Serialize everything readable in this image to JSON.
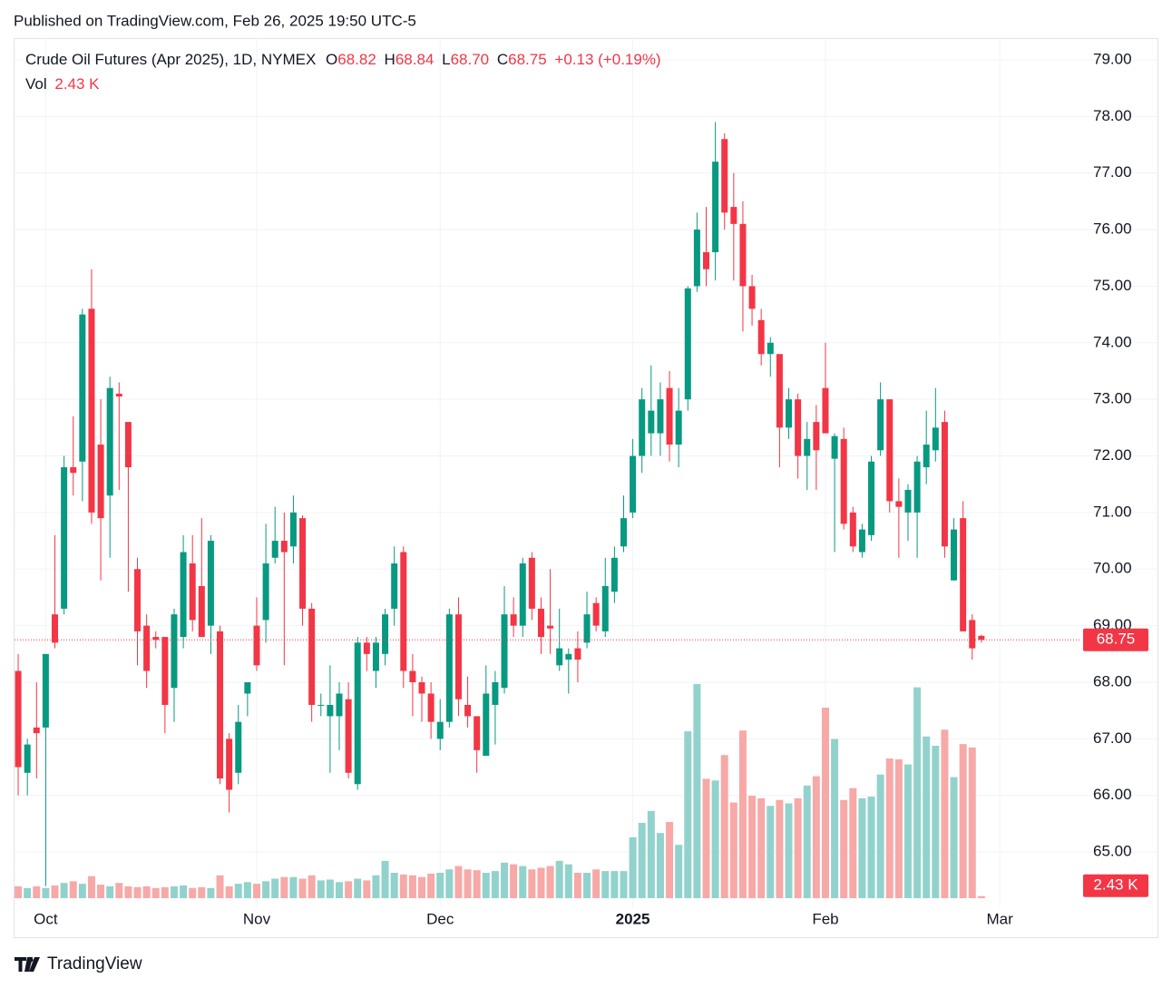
{
  "published": "Published on TradingView.com, Feb 26, 2025 19:50 UTC-5",
  "footer": "TradingView",
  "chart_data": {
    "type": "candlestick",
    "title": "Crude Oil Futures (Apr 2025), 1D, NYMEX",
    "ohlc_labels": [
      "O",
      "H",
      "L",
      "C"
    ],
    "ohlc_value_labels": [
      "68.82",
      "68.84",
      "68.70",
      "68.75"
    ],
    "change": "+0.13 (+0.19%)",
    "volume_title": "Vol",
    "volume_label": "2.43 K",
    "up_color": "#089981",
    "down_color": "#f23645",
    "volume_up_color": "#92d2cc",
    "volume_down_color": "#f7a9a7",
    "grid": true,
    "xlim": [
      -0.5,
      115
    ],
    "xticks": [
      {
        "value": 3,
        "label": "Oct"
      },
      {
        "value": 26,
        "label": "Nov"
      },
      {
        "value": 46,
        "label": "Dec"
      },
      {
        "value": 67,
        "label": "2025"
      },
      {
        "value": 88,
        "label": "Feb"
      },
      {
        "value": 107,
        "label": "Mar"
      }
    ],
    "ylim": [
      64.2,
      79.4
    ],
    "yticks": [
      {
        "value": 65,
        "label": "65.00"
      },
      {
        "value": 66,
        "label": "66.00"
      },
      {
        "value": 67,
        "label": "67.00"
      },
      {
        "value": 68,
        "label": "68.00"
      },
      {
        "value": 69,
        "label": "69.00"
      },
      {
        "value": 70,
        "label": "70.00"
      },
      {
        "value": 71,
        "label": "71.00"
      },
      {
        "value": 72,
        "label": "72.00"
      },
      {
        "value": 73,
        "label": "73.00"
      },
      {
        "value": 74,
        "label": "74.00"
      },
      {
        "value": 75,
        "label": "75.00"
      },
      {
        "value": 76,
        "label": "76.00"
      },
      {
        "value": 77,
        "label": "77.00"
      },
      {
        "value": 78,
        "label": "78.00"
      },
      {
        "value": 79,
        "label": "79.00"
      }
    ],
    "volume_lim": [
      0,
      300
    ],
    "open": [
      68.2,
      66.4,
      67.2,
      67.2,
      69.2,
      69.3,
      71.8,
      71.9,
      74.6,
      72.2,
      71.3,
      73.1,
      72.6,
      70.0,
      69.0,
      68.8,
      68.8,
      67.9,
      68.8,
      70.1,
      69.7,
      69.0,
      68.9,
      67.0,
      66.4,
      67.8,
      69.0,
      69.1,
      70.2,
      70.5,
      70.4,
      70.9,
      69.3,
      67.6,
      67.4,
      67.4,
      67.7,
      66.2,
      68.7,
      68.2,
      68.5,
      69.3,
      70.3,
      68.2,
      68.0,
      67.8,
      67.0,
      67.3,
      69.2,
      67.6,
      67.4,
      66.7,
      67.6,
      67.9,
      69.2,
      69.0,
      70.2,
      69.3,
      69.0,
      68.3,
      68.4,
      68.6,
      68.7,
      69.4,
      68.9,
      69.6,
      70.4,
      71.0,
      72.0,
      72.4,
      72.4,
      73.2,
      72.2,
      73.0,
      75.0,
      75.6,
      75.6,
      77.6,
      76.4,
      76.1,
      75.0,
      74.4,
      73.8,
      73.8,
      72.5,
      73.0,
      72.0,
      72.6,
      73.2,
      71.95,
      72.3,
      71.0,
      70.3,
      70.6,
      72.1,
      73.0,
      71.2,
      71.0,
      71.0,
      71.8,
      72.1,
      72.6,
      69.8,
      70.9,
      69.1,
      68.82
    ],
    "high": [
      68.5,
      67.0,
      68.0,
      68.5,
      70.6,
      72.0,
      72.7,
      74.6,
      75.3,
      73.0,
      73.4,
      73.3,
      72.6,
      70.2,
      69.2,
      68.9,
      68.8,
      69.3,
      70.6,
      70.6,
      70.9,
      70.6,
      69.0,
      67.1,
      67.6,
      68.0,
      69.5,
      70.8,
      71.1,
      71.0,
      71.3,
      70.95,
      69.4,
      67.8,
      68.3,
      68.0,
      68.0,
      68.8,
      68.8,
      68.8,
      69.3,
      70.4,
      70.4,
      68.5,
      68.1,
      68.0,
      67.7,
      69.3,
      69.5,
      68.1,
      67.4,
      68.3,
      68.2,
      69.7,
      69.5,
      70.2,
      70.3,
      69.5,
      70.0,
      69.3,
      68.6,
      68.9,
      69.6,
      69.5,
      70.2,
      70.4,
      71.3,
      72.3,
      73.2,
      73.6,
      73.3,
      73.5,
      73.2,
      75.0,
      76.3,
      76.4,
      77.9,
      77.7,
      77.0,
      76.5,
      75.2,
      74.6,
      74.1,
      73.8,
      73.2,
      73.1,
      72.6,
      72.9,
      74.0,
      72.4,
      72.5,
      71.1,
      70.8,
      72.0,
      73.3,
      73.0,
      71.6,
      71.5,
      72.0,
      72.8,
      73.2,
      72.8,
      70.9,
      71.2,
      69.2,
      68.84
    ],
    "low": [
      66.0,
      66.0,
      66.3,
      64.4,
      68.6,
      69.2,
      71.3,
      71.2,
      70.8,
      69.8,
      70.2,
      71.4,
      69.6,
      68.3,
      67.9,
      68.6,
      67.1,
      67.3,
      68.6,
      68.9,
      68.8,
      68.5,
      66.2,
      65.7,
      66.2,
      67.4,
      68.2,
      68.7,
      70.1,
      68.3,
      70.1,
      69.0,
      67.3,
      67.4,
      66.4,
      66.8,
      66.3,
      66.1,
      68.2,
      67.9,
      68.3,
      69.0,
      67.9,
      67.4,
      67.3,
      67.0,
      66.8,
      67.2,
      67.4,
      67.2,
      66.4,
      66.7,
      66.9,
      67.8,
      68.8,
      68.8,
      69.1,
      68.5,
      68.5,
      68.2,
      67.8,
      68.0,
      68.6,
      68.9,
      68.8,
      69.4,
      70.3,
      70.9,
      71.7,
      72.0,
      72.0,
      71.9,
      71.8,
      72.8,
      74.9,
      75.0,
      75.1,
      76.0,
      75.1,
      74.2,
      74.3,
      73.6,
      73.4,
      71.8,
      72.3,
      71.6,
      71.4,
      71.4,
      72.4,
      70.3,
      70.7,
      70.3,
      70.2,
      70.5,
      72.0,
      71.0,
      70.2,
      70.5,
      70.2,
      71.5,
      71.9,
      70.2,
      69.8,
      68.9,
      68.4,
      68.7
    ],
    "close": [
      66.5,
      66.9,
      67.1,
      68.5,
      68.7,
      71.8,
      71.7,
      74.5,
      71.0,
      70.9,
      73.2,
      73.05,
      71.8,
      68.9,
      68.2,
      68.75,
      67.6,
      69.2,
      70.3,
      69.1,
      68.8,
      70.5,
      66.3,
      66.1,
      67.3,
      68.0,
      68.3,
      70.1,
      70.5,
      70.3,
      71.0,
      69.3,
      67.6,
      67.6,
      67.6,
      67.8,
      66.4,
      68.7,
      68.5,
      68.7,
      69.2,
      70.1,
      68.2,
      68.0,
      67.8,
      67.3,
      67.3,
      69.2,
      67.7,
      67.4,
      66.8,
      67.8,
      68.0,
      69.2,
      69.0,
      70.1,
      69.3,
      68.8,
      68.95,
      68.6,
      68.5,
      68.4,
      69.2,
      69.0,
      69.7,
      70.2,
      70.9,
      72.0,
      73.0,
      72.8,
      73.0,
      72.2,
      72.8,
      74.96,
      76.0,
      75.3,
      77.2,
      76.3,
      76.1,
      75.0,
      74.6,
      73.8,
      74.0,
      72.5,
      73.0,
      72.0,
      72.3,
      72.1,
      72.4,
      72.35,
      70.8,
      70.4,
      70.7,
      71.9,
      73.0,
      71.2,
      71.1,
      71.4,
      71.9,
      72.2,
      72.5,
      70.4,
      70.7,
      68.9,
      68.6,
      68.75
    ],
    "volume": [
      14,
      12,
      14,
      12,
      15,
      18,
      20,
      17,
      26,
      16,
      14,
      18,
      14,
      13,
      14,
      12,
      13,
      14,
      15,
      12,
      13,
      12,
      27,
      14,
      17,
      19,
      17,
      20,
      23,
      25,
      25,
      23,
      27,
      21,
      22,
      19,
      20,
      23,
      21,
      27,
      44,
      30,
      28,
      27,
      25,
      29,
      30,
      34,
      38,
      34,
      33,
      30,
      32,
      42,
      40,
      38,
      34,
      36,
      38,
      44,
      40,
      30,
      30,
      34,
      32,
      32,
      32,
      72,
      89,
      103,
      77,
      90,
      63,
      197,
      253,
      141,
      139,
      169,
      113,
      198,
      121,
      118,
      109,
      116,
      112,
      118,
      133,
      144,
      225,
      188,
      116,
      130,
      118,
      120,
      146,
      165,
      164,
      158,
      249,
      191,
      180,
      199,
      143,
      182,
      178,
      2.43
    ]
  }
}
